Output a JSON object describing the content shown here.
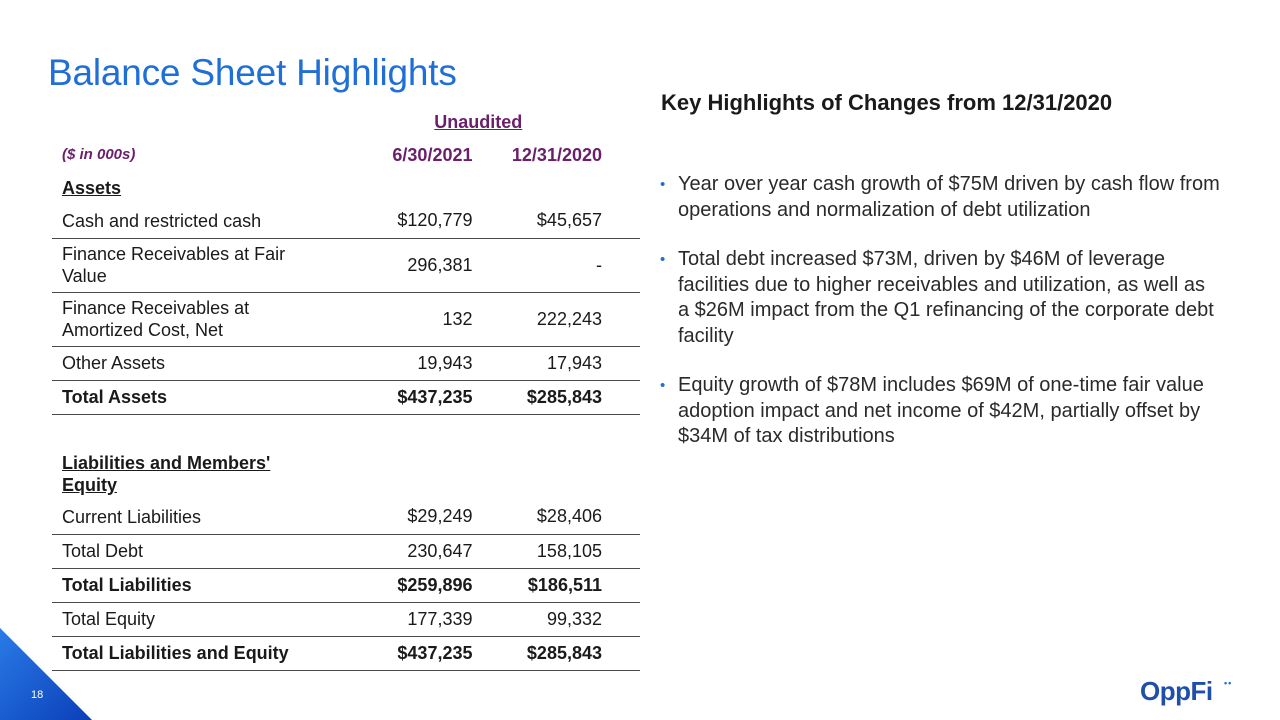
{
  "title": "Balance Sheet Highlights",
  "table": {
    "unaudited_label": "Unaudited",
    "units_label": "($ in 000s)",
    "col1_header": "6/30/2021",
    "col2_header": "12/31/2020",
    "assets_section": "Assets",
    "assets_rows": [
      {
        "label": "Cash and restricted cash",
        "v1": "$120,779",
        "v2": "$45,657"
      },
      {
        "label": "Finance Receivables at Fair Value",
        "v1": "296,381",
        "v2": "-"
      },
      {
        "label": "Finance Receivables at Amortized Cost, Net",
        "v1": "132",
        "v2": "222,243"
      },
      {
        "label": "Other Assets",
        "v1": "19,943",
        "v2": "17,943"
      }
    ],
    "total_assets": {
      "label": "Total Assets",
      "v1": "$437,235",
      "v2": "$285,843"
    },
    "liabilities_section": "Liabilities and Members' Equity",
    "liabilities_rows": [
      {
        "label": "Current Liabilities",
        "v1": "$29,249",
        "v2": "$28,406"
      },
      {
        "label": "Total Debt",
        "v1": "230,647",
        "v2": "158,105"
      }
    ],
    "total_liabilities": {
      "label": "Total Liabilities",
      "v1": "$259,896",
      "v2": "$186,511"
    },
    "total_equity": {
      "label": "Total Equity",
      "v1": "177,339",
      "v2": "99,332"
    },
    "total_liabilities_equity": {
      "label": "Total Liabilities and Equity",
      "v1": "$437,235",
      "v2": "$285,843"
    }
  },
  "highlights": {
    "title": "Key Highlights of Changes from 12/31/2020",
    "bullet_glyph": "•",
    "items": [
      "Year over year cash growth of $75M driven by cash flow from operations and normalization of debt utilization",
      "Total debt increased $73M, driven by $46M of leverage facilities due to higher receivables and utilization, as well as a $26M impact from the Q1 refinancing of the corporate debt facility",
      "Equity growth of $78M includes $69M of one-time fair value adoption impact and net income of $42M, partially offset by $34M of tax distributions"
    ]
  },
  "footer": {
    "page_number": "18",
    "logo_text": "OppFi",
    "logo_dots": "••"
  },
  "colors": {
    "title_blue": "#1f6fd6",
    "header_purple": "#6b1f6b",
    "logo_navy": "#1f4fa8"
  }
}
